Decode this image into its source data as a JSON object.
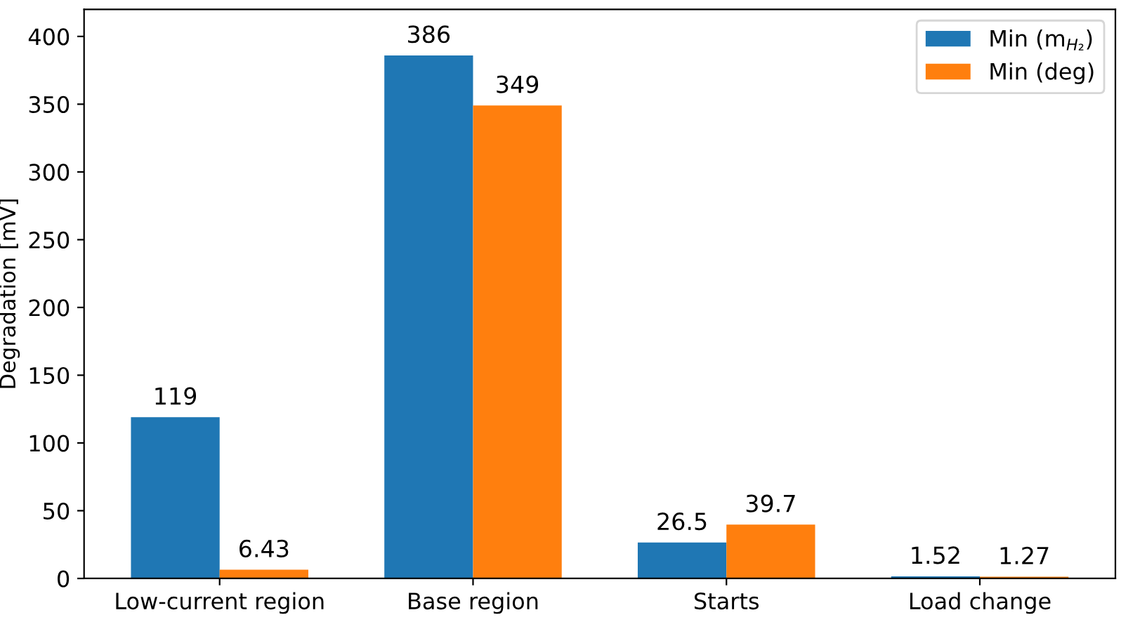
{
  "chart_data": {
    "type": "bar",
    "ylabel": "Degradation [mV]",
    "categories": [
      "Low-current region",
      "Base region",
      "Starts",
      "Load change"
    ],
    "series": [
      {
        "name": "Min (m$_{H₂}$)",
        "color": "#1f77b4",
        "values": [
          119,
          386,
          26.5,
          1.52
        ]
      },
      {
        "name": "Min (deg)",
        "color": "#ff7f0e",
        "values": [
          6.43,
          349,
          39.7,
          1.27
        ]
      }
    ],
    "ylim": [
      0,
      420
    ],
    "yticks": [
      0,
      50,
      100,
      150,
      200,
      250,
      300,
      350,
      400
    ],
    "data_labels": true,
    "legend": "top right",
    "grid": false
  }
}
